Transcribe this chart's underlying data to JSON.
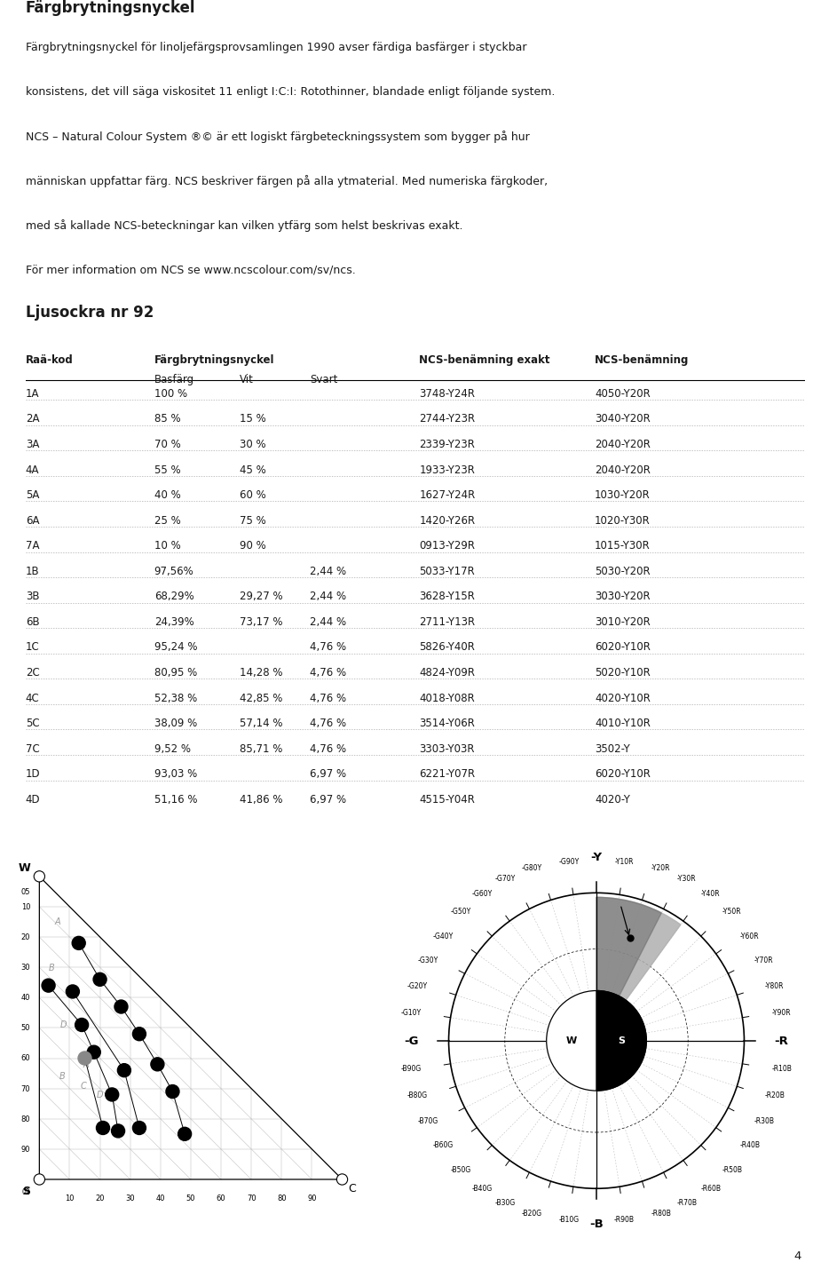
{
  "title": "Färgbrytningsnyckel",
  "intro_lines": [
    "Färgbrytningsnyckel för linoljefärgsprovsamlingen 1990 avser färdiga basfärger i styckbar",
    "konsistens, det vill säga viskositet 11 enligt I:C:I: Rotothinner, blandade enligt följande system.",
    "NCS – Natural Colour System ®© är ett logiskt färgbeteckningssystem som bygger på hur",
    "människan uppfattar färg. NCS beskriver färgen på alla ytmaterial. Med numeriska färgkoder,",
    "med så kallade NCS-beteckningar kan vilken ytfärg som helst beskrivas exakt.",
    "För mer information om NCS se www.ncscolour.com/sv/ncs."
  ],
  "subtitle": "Ljusockra nr 92",
  "col_headers": [
    "Raä-kod",
    "Färgbrytningsnyckel",
    "NCS-benämning exakt",
    "NCS-benämning"
  ],
  "sub_headers": [
    "Basfärg",
    "Vit",
    "Svart"
  ],
  "rows": [
    [
      "1A",
      "100 %",
      "",
      "",
      "3748-Y24R",
      "4050-Y20R"
    ],
    [
      "2A",
      "85 %",
      "15 %",
      "",
      "2744-Y23R",
      "3040-Y20R"
    ],
    [
      "3A",
      "70 %",
      "30 %",
      "",
      "2339-Y23R",
      "2040-Y20R"
    ],
    [
      "4A",
      "55 %",
      "45 %",
      "",
      "1933-Y23R",
      "2040-Y20R"
    ],
    [
      "5A",
      "40 %",
      "60 %",
      "",
      "1627-Y24R",
      "1030-Y20R"
    ],
    [
      "6A",
      "25 %",
      "75 %",
      "",
      "1420-Y26R",
      "1020-Y30R"
    ],
    [
      "7A",
      "10 %",
      "90 %",
      "",
      "0913-Y29R",
      "1015-Y30R"
    ],
    [
      "1B",
      "97,56%",
      "",
      "2,44 %",
      "5033-Y17R",
      "5030-Y20R"
    ],
    [
      "3B",
      "68,29%",
      "29,27 %",
      "2,44 %",
      "3628-Y15R",
      "3030-Y20R"
    ],
    [
      "6B",
      "24,39%",
      "73,17 %",
      "2,44 %",
      "2711-Y13R",
      "3010-Y20R"
    ],
    [
      "1C",
      "95,24 %",
      "",
      "4,76 %",
      "5826-Y40R",
      "6020-Y10R"
    ],
    [
      "2C",
      "80,95 %",
      "14,28 %",
      "4,76 %",
      "4824-Y09R",
      "5020-Y10R"
    ],
    [
      "4C",
      "52,38 %",
      "42,85 %",
      "4,76 %",
      "4018-Y08R",
      "4020-Y10R"
    ],
    [
      "5C",
      "38,09 %",
      "57,14 %",
      "4,76 %",
      "3514-Y06R",
      "4010-Y10R"
    ],
    [
      "7C",
      "9,52 %",
      "85,71 %",
      "4,76 %",
      "3303-Y03R",
      "3502-Y"
    ],
    [
      "1D",
      "93,03 %",
      "",
      "6,97 %",
      "6221-Y07R",
      "6020-Y10R"
    ],
    [
      "4D",
      "51,16 %",
      "41,86 %",
      "6,97 %",
      "4515-Y04R",
      "4020-Y"
    ]
  ],
  "ncs_points": [
    [
      "3748",
      "1A"
    ],
    [
      "2744",
      "2A"
    ],
    [
      "2339",
      "3A"
    ],
    [
      "1933",
      "4A"
    ],
    [
      "1627",
      "5A"
    ],
    [
      "1420",
      "6A"
    ],
    [
      "0913",
      "7A"
    ],
    [
      "5033",
      "1B"
    ],
    [
      "3628",
      "3B"
    ],
    [
      "2711",
      "6B"
    ],
    [
      "5826",
      "1C"
    ],
    [
      "4824",
      "2C"
    ],
    [
      "4018",
      "4C"
    ],
    [
      "3514",
      "5C"
    ],
    [
      "3303",
      "7C"
    ],
    [
      "6221",
      "1D"
    ],
    [
      "4515",
      "4D"
    ]
  ],
  "groups": {
    "A": [
      "1A",
      "2A",
      "3A",
      "4A",
      "5A",
      "6A",
      "7A"
    ],
    "B": [
      "1B",
      "3B",
      "6B"
    ],
    "C": [
      "1C",
      "2C",
      "4C",
      "5C",
      "7C"
    ],
    "D": [
      "1D",
      "4D"
    ]
  },
  "gray_dot": [
    "4D"
  ],
  "bg_color": "#ffffff",
  "text_color": "#1a1a1a",
  "line_color": "#aaaaaa",
  "page_number": "4"
}
